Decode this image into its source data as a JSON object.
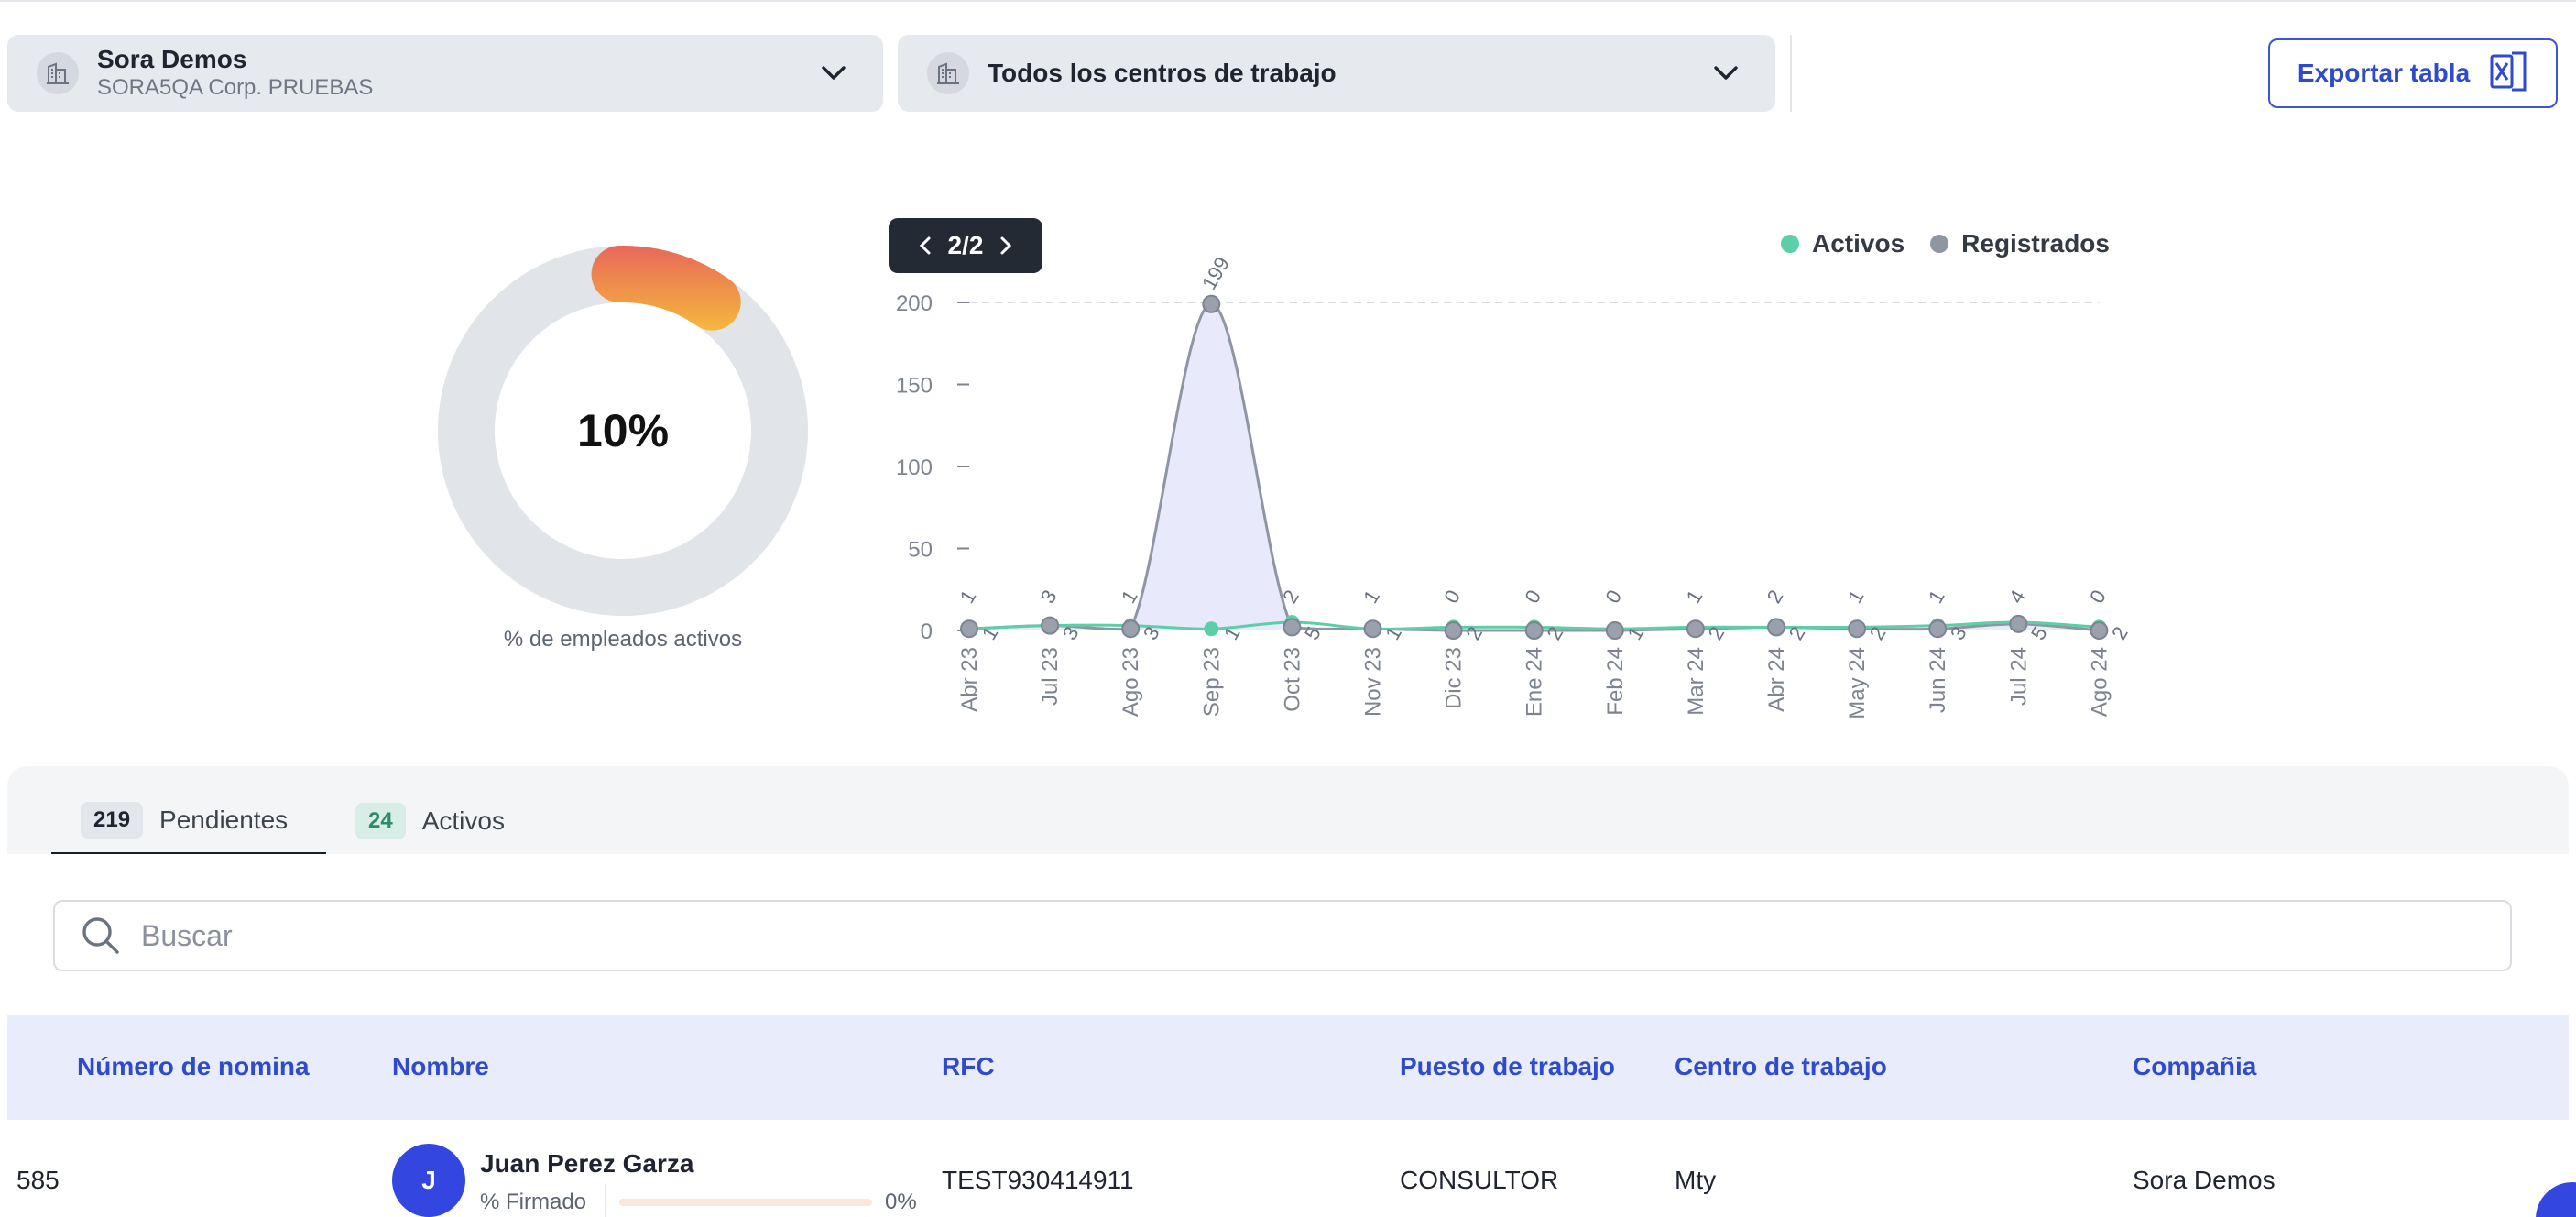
{
  "filters": {
    "company": {
      "title": "Sora Demos",
      "subtitle": "SORA5QA Corp. PRUEBAS",
      "icon": "building-icon"
    },
    "work_center": {
      "title": "Todos los centros de trabajo",
      "icon": "building-icon"
    },
    "export_label": "Exportar tabla",
    "export_icon": "excel-icon"
  },
  "donut": {
    "percent_label": "10%",
    "value": 0.1,
    "caption": "% de empleados activos",
    "track_color": "#e1e4e8",
    "fill_colors": [
      "#e8685a",
      "#f5b83c"
    ]
  },
  "chart_pager": {
    "label": "2/2"
  },
  "legend": [
    {
      "name": "Activos",
      "color": "#5ccfa8"
    },
    {
      "name": "Registrados",
      "color": "#8f96a3"
    }
  ],
  "chart_data": {
    "type": "line",
    "categories": [
      "Abr 23",
      "Jul 23",
      "Ago 23",
      "Sep 23",
      "Oct 23",
      "Nov 23",
      "Dic 23",
      "Ene 24",
      "Feb 24",
      "Mar 24",
      "Abr 24",
      "May 24",
      "Jun 24",
      "Jul 24",
      "Ago 24"
    ],
    "yticks": [
      0,
      50,
      100,
      150,
      200
    ],
    "ylim": [
      0,
      200
    ],
    "series": [
      {
        "name": "Registrados",
        "values": [
          1,
          3,
          1,
          199,
          2,
          1,
          0,
          0,
          0,
          1,
          2,
          1,
          1,
          4,
          0
        ],
        "labels": [
          "1",
          "3",
          "1",
          "199",
          "2",
          "1",
          "0",
          "0",
          "0",
          "1",
          "2",
          "1",
          "1",
          "4",
          "0"
        ]
      },
      {
        "name": "Activos",
        "values": [
          1,
          3,
          3,
          1,
          5,
          1,
          2,
          2,
          1,
          2,
          2,
          2,
          3,
          5,
          2
        ],
        "labels": [
          "1",
          "3",
          "3",
          "1",
          "5",
          "1",
          "2",
          "2",
          "1",
          "2",
          "2",
          "2",
          "3",
          "5",
          "2"
        ]
      }
    ],
    "grid": "dashed line at max"
  },
  "tabs": [
    {
      "count": "219",
      "label": "Pendientes",
      "active": true
    },
    {
      "count": "24",
      "label": "Activos",
      "active": false
    }
  ],
  "search": {
    "placeholder": "Buscar"
  },
  "table": {
    "headers": [
      "Número de nomina",
      "Nombre",
      "RFC",
      "Puesto de trabajo",
      "Centro de trabajo",
      "Compañia"
    ],
    "rows": [
      {
        "nomina": "585",
        "initial": "J",
        "name": "Juan Perez Garza",
        "signed_label": "% Firmado",
        "signed_pct": "0%",
        "signed_value": 0,
        "rfc": "TEST930414911",
        "puesto": "CONSULTOR",
        "centro": "Mty",
        "compania": "Sora Demos"
      }
    ]
  }
}
